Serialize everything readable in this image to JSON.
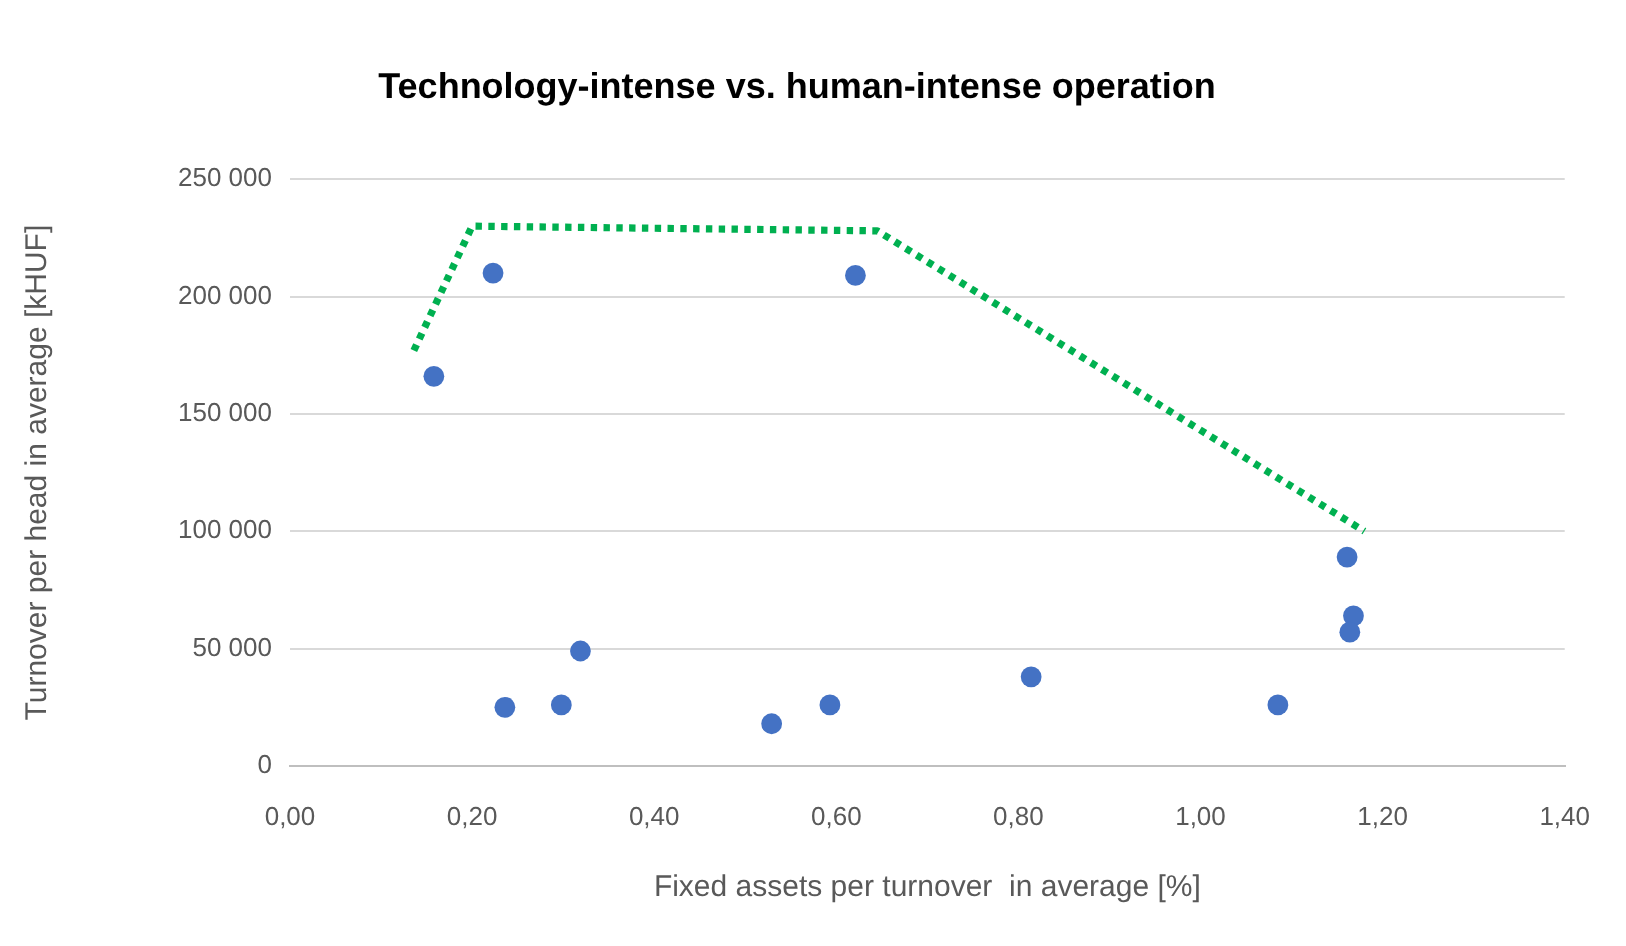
{
  "chart_data": {
    "type": "scatter",
    "title": "Technology-intense vs. human-intense operation",
    "xlabel": "Fixed assets per turnover  in average [%]",
    "ylabel": "Turnover per head in average [kHUF]",
    "xlim": [
      0,
      1.4
    ],
    "xticks": [
      {
        "value": 0,
        "label": "0,00"
      },
      {
        "value": 0.2,
        "label": "0,20"
      },
      {
        "value": 0.4,
        "label": "0,40"
      },
      {
        "value": 0.6,
        "label": "0,60"
      },
      {
        "value": 0.8,
        "label": "0,80"
      },
      {
        "value": 1.0,
        "label": "1,00"
      },
      {
        "value": 1.2,
        "label": "1,20"
      },
      {
        "value": 1.4,
        "label": "1,40"
      }
    ],
    "ylim": [
      0,
      250000
    ],
    "yticks": [
      0,
      {
        "value": 50000,
        "label": "50 000"
      },
      {
        "value": 100000,
        "label": "100 000"
      },
      {
        "value": 150000,
        "label": "150 000"
      },
      {
        "value": 200000,
        "label": "200 000"
      },
      {
        "value": 250000,
        "label": "250 000"
      }
    ],
    "grid": "y",
    "marker": "circle",
    "series": [
      {
        "type": "scatter",
        "color": "#4472c4",
        "x": [
          0.158,
          0.223,
          0.621,
          0.236,
          0.298,
          0.319,
          0.529,
          0.593,
          0.814,
          1.085,
          1.161,
          1.168,
          1.164
        ],
        "values": [
          166000,
          210000,
          209000,
          25000,
          26000,
          49000,
          18000,
          26000,
          38000,
          26000,
          89000,
          64000,
          57000
        ]
      },
      {
        "type": "line",
        "color": "#00b050",
        "line_style": "dotted",
        "marker": "none",
        "x": [
          0.136,
          0.2,
          0.645,
          1.18
        ],
        "values": [
          177000,
          230000,
          228000,
          100000
        ]
      }
    ]
  }
}
